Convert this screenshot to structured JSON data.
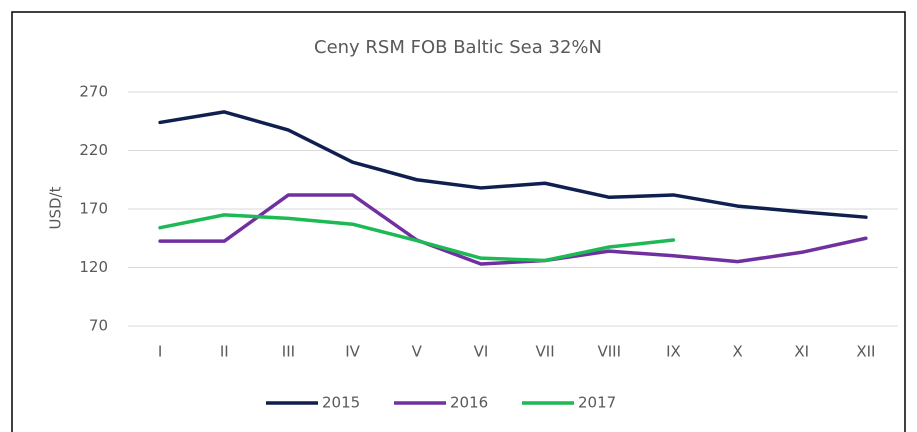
{
  "chart_data": {
    "type": "line",
    "title": "Ceny RSM FOB Baltic Sea 32%N",
    "ylabel": "USD/t",
    "categories": [
      "I",
      "II",
      "III",
      "IV",
      "V",
      "VI",
      "VII",
      "VIII",
      "IX",
      "X",
      "XI",
      "XII"
    ],
    "series": [
      {
        "name": "2015",
        "color": "#0f1f4f",
        "values": [
          244,
          253,
          237.5,
          210,
          195,
          188,
          192,
          180,
          182,
          172.5,
          167.5,
          163
        ]
      },
      {
        "name": "2016",
        "color": "#7030a0",
        "values": [
          142.5,
          142.5,
          182,
          182,
          143.5,
          123,
          126,
          134,
          130,
          125,
          133,
          145
        ]
      },
      {
        "name": "2017",
        "color": "#1db954",
        "values": [
          154,
          165,
          162,
          157,
          143,
          128,
          126,
          137.5,
          143.5,
          null,
          null,
          null
        ]
      }
    ],
    "ylim": [
      70,
      270
    ],
    "yticks": [
      70,
      120,
      170,
      220,
      270
    ],
    "grid": true,
    "legend": "bottom"
  }
}
